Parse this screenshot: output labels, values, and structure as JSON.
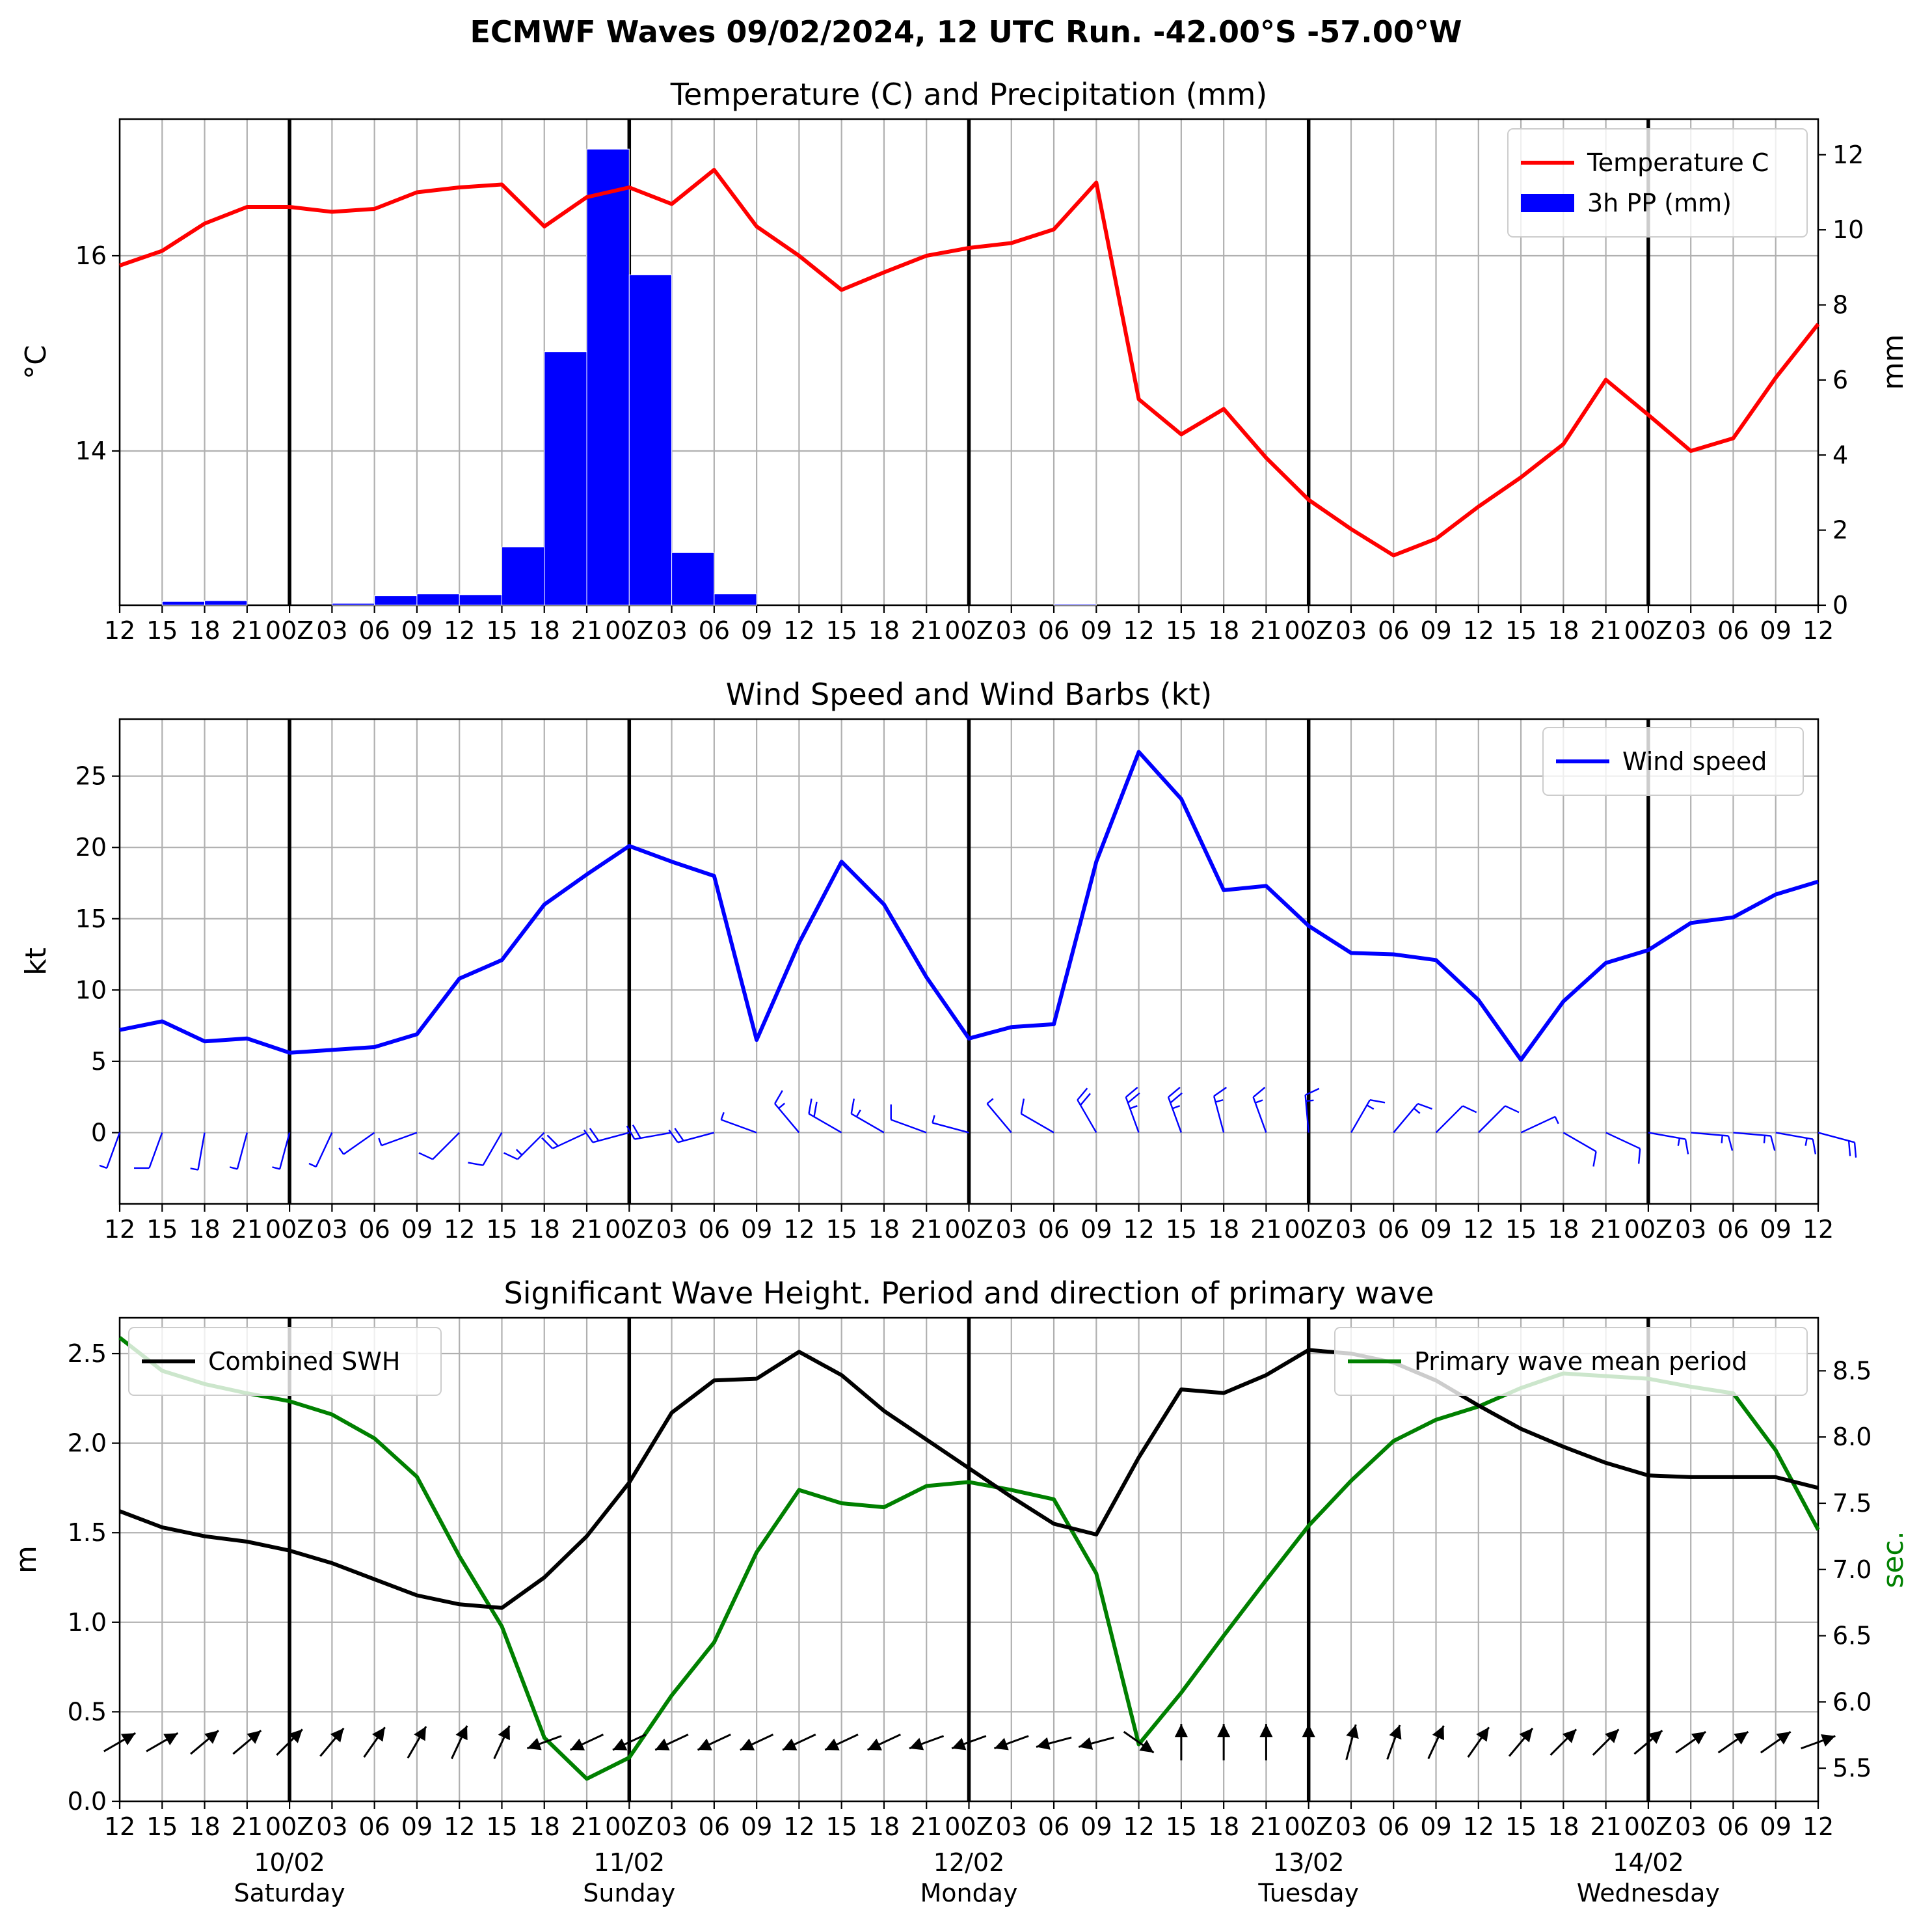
{
  "suptitle": "ECMWF Waves 09/02/2024, 12 UTC Run. -42.00°S -57.00°W",
  "time_ticks": [
    "12",
    "15",
    "18",
    "21",
    "00Z",
    "03",
    "06",
    "09",
    "12",
    "15",
    "18",
    "21",
    "00Z",
    "03",
    "06",
    "09",
    "12",
    "15",
    "18",
    "21",
    "00Z",
    "03",
    "06",
    "09",
    "12",
    "15",
    "18",
    "21",
    "00Z",
    "03",
    "06",
    "09",
    "12",
    "15",
    "18",
    "21",
    "00Z",
    "03",
    "06",
    "09",
    "12"
  ],
  "day_labels": [
    {
      "date": "10/02",
      "day": "Saturday",
      "index": 4
    },
    {
      "date": "11/02",
      "day": "Sunday",
      "index": 12
    },
    {
      "date": "12/02",
      "day": "Monday",
      "index": 20
    },
    {
      "date": "13/02",
      "day": "Tuesday",
      "index": 28
    },
    {
      "date": "14/02",
      "day": "Wednesday",
      "index": 36
    }
  ],
  "colors": {
    "temperature": "#ff0000",
    "precip": "#0000ff",
    "wind": "#0000ff",
    "swh": "#000000",
    "period": "#008000",
    "grid": "#b0b0b0",
    "daylines": "#000000"
  },
  "chart_data": [
    {
      "type": "line",
      "title": "Temperature (C) and Precipitation (mm)",
      "ylabel": "$^\\circ$C",
      "ylabel_display": "°C",
      "y2label": "mm",
      "ylim": [
        12.42,
        17.4
      ],
      "y2lim": [
        0,
        12.95
      ],
      "yticks": [
        14,
        16
      ],
      "y2ticks": [
        0,
        2,
        4,
        6,
        8,
        10,
        12
      ],
      "grid": true,
      "legend_position": "top-right",
      "series": [
        {
          "name": "Temperature C",
          "axis": "left",
          "values": [
            15.9,
            16.05,
            16.33,
            16.5,
            16.5,
            16.45,
            16.48,
            16.65,
            16.7,
            16.73,
            16.3,
            16.6,
            16.7,
            16.53,
            16.88,
            16.3,
            16.0,
            15.65,
            15.83,
            16.0,
            16.08,
            16.13,
            16.27,
            16.75,
            14.53,
            14.17,
            14.43,
            13.93,
            13.5,
            13.2,
            12.93,
            13.1,
            13.43,
            13.73,
            14.07,
            14.73,
            14.37,
            14.0,
            14.13,
            14.75,
            15.3
          ]
        },
        {
          "name": "3h PP (mm)",
          "axis": "right",
          "type": "bar",
          "values": [
            0,
            0.1,
            0.12,
            0,
            0,
            0.05,
            0.25,
            0.3,
            0.28,
            1.55,
            6.75,
            12.15,
            8.8,
            1.4,
            0.3,
            0,
            0,
            0,
            0,
            0,
            0,
            0,
            0.03,
            0,
            0,
            0,
            0,
            0,
            0,
            0,
            0,
            0,
            0,
            0,
            0,
            0,
            0,
            0,
            0,
            0
          ]
        }
      ]
    },
    {
      "type": "line",
      "title": "Wind Speed and Wind Barbs (kt)",
      "ylabel": "kt",
      "ylim": [
        -5,
        29
      ],
      "yticks": [
        0,
        5,
        10,
        15,
        20,
        25
      ],
      "grid": true,
      "legend_position": "top-right",
      "series": [
        {
          "name": "Wind speed",
          "values": [
            7.2,
            7.8,
            6.4,
            6.6,
            5.6,
            5.8,
            6.0,
            6.9,
            10.8,
            12.1,
            16.0,
            18.1,
            20.1,
            19.0,
            18.0,
            6.5,
            13.3,
            19.0,
            16.0,
            10.9,
            6.6,
            7.4,
            7.6,
            19.0,
            26.7,
            23.4,
            17.0,
            17.3,
            14.5,
            12.6,
            12.5,
            12.1,
            9.3,
            5.1,
            9.2,
            11.9,
            12.8,
            14.7,
            15.1,
            16.7,
            17.6
          ]
        }
      ],
      "barbs_from_deg": [
        200,
        200,
        190,
        195,
        195,
        205,
        235,
        250,
        225,
        210,
        225,
        245,
        255,
        260,
        255,
        290,
        320,
        300,
        300,
        290,
        285,
        320,
        300,
        330,
        340,
        340,
        345,
        340,
        355,
        30,
        40,
        45,
        45,
        65,
        120,
        115,
        100,
        95,
        95,
        100,
        105
      ]
    },
    {
      "type": "line",
      "title": "Significant Wave Height. Period and direction of primary wave",
      "ylabel": "m",
      "y2label": "sec.",
      "ylim": [
        0,
        2.7
      ],
      "y2lim": [
        5.25,
        8.9
      ],
      "yticks": [
        0.0,
        0.5,
        1.0,
        1.5,
        2.0,
        2.5
      ],
      "y2ticks": [
        5.5,
        6.0,
        6.5,
        7.0,
        7.5,
        8.0,
        8.5
      ],
      "grid": true,
      "series": [
        {
          "name": "Combined SWH",
          "axis": "left",
          "legend_position": "top-left",
          "values": [
            1.62,
            1.53,
            1.48,
            1.45,
            1.4,
            1.33,
            1.24,
            1.15,
            1.1,
            1.08,
            1.25,
            1.48,
            1.78,
            2.17,
            2.35,
            2.36,
            2.51,
            2.38,
            2.18,
            2.02,
            1.86,
            1.7,
            1.55,
            1.49,
            1.92,
            2.3,
            2.28,
            2.38,
            2.52,
            2.5,
            2.45,
            2.35,
            2.21,
            2.08,
            1.98,
            1.89,
            1.82,
            1.81,
            1.81,
            1.81,
            1.75
          ]
        },
        {
          "name": "Primary wave mean period",
          "axis": "right",
          "legend_position": "top-right",
          "values": [
            8.75,
            8.5,
            8.4,
            8.33,
            8.27,
            8.17,
            7.99,
            7.7,
            7.1,
            6.57,
            5.73,
            5.42,
            5.58,
            6.05,
            6.45,
            7.13,
            7.6,
            7.5,
            7.47,
            7.63,
            7.66,
            7.6,
            7.53,
            6.97,
            5.68,
            6.07,
            6.5,
            6.92,
            7.33,
            7.67,
            7.97,
            8.13,
            8.23,
            8.37,
            8.48,
            8.46,
            8.44,
            8.38,
            8.33,
            7.9,
            7.3
          ]
        }
      ],
      "arrow_to_deg": [
        60,
        60,
        50,
        50,
        45,
        40,
        35,
        30,
        25,
        25,
        250,
        245,
        245,
        245,
        245,
        245,
        245,
        245,
        245,
        250,
        250,
        250,
        255,
        255,
        125,
        0,
        0,
        0,
        0,
        15,
        20,
        25,
        35,
        40,
        45,
        45,
        50,
        55,
        55,
        55,
        70
      ]
    }
  ]
}
